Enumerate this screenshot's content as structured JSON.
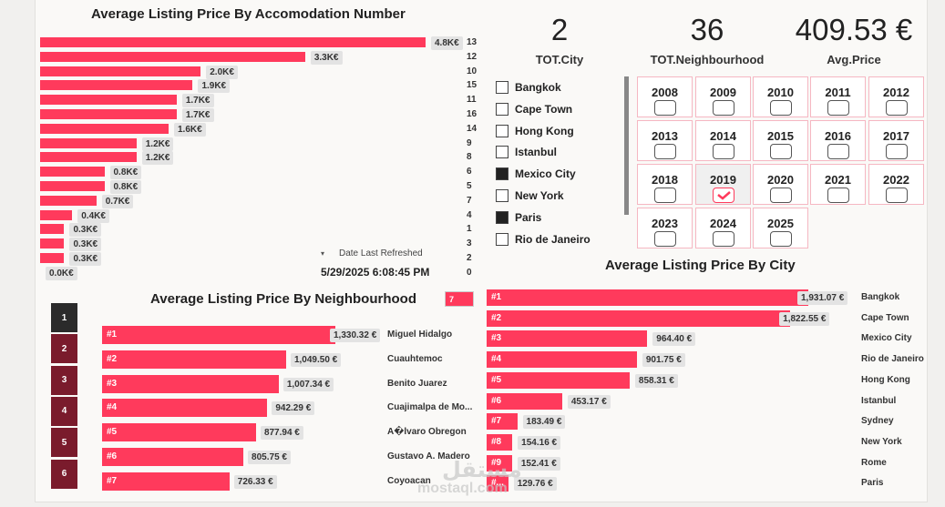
{
  "accommodation": {
    "title": "Average Listing Price By Accomodation Number",
    "bars": [
      {
        "cat": "13",
        "label": "4.8K€",
        "value": 4.8
      },
      {
        "cat": "12",
        "label": "3.3K€",
        "value": 3.3
      },
      {
        "cat": "10",
        "label": "2.0K€",
        "value": 2.0
      },
      {
        "cat": "15",
        "label": "1.9K€",
        "value": 1.9
      },
      {
        "cat": "11",
        "label": "1.7K€",
        "value": 1.7
      },
      {
        "cat": "16",
        "label": "1.7K€",
        "value": 1.7
      },
      {
        "cat": "14",
        "label": "1.6K€",
        "value": 1.6
      },
      {
        "cat": "9",
        "label": "1.2K€",
        "value": 1.2
      },
      {
        "cat": "8",
        "label": "1.2K€",
        "value": 1.2
      },
      {
        "cat": "6",
        "label": "0.8K€",
        "value": 0.8
      },
      {
        "cat": "5",
        "label": "0.8K€",
        "value": 0.8
      },
      {
        "cat": "7",
        "label": "0.7K€",
        "value": 0.7
      },
      {
        "cat": "4",
        "label": "0.4K€",
        "value": 0.4
      },
      {
        "cat": "1",
        "label": "0.3K€",
        "value": 0.3
      },
      {
        "cat": "3",
        "label": "0.3K€",
        "value": 0.3
      },
      {
        "cat": "2",
        "label": "0.3K€",
        "value": 0.3
      },
      {
        "cat": "0",
        "label": "0.0K€",
        "value": 0.0
      }
    ]
  },
  "refresh": {
    "label": "Date Last Refreshed",
    "value": "5/29/2025 6:08:45 PM"
  },
  "kpis": [
    {
      "value": "2",
      "label": "TOT.City"
    },
    {
      "value": "36",
      "label": "TOT.Neighbourhood"
    },
    {
      "value": "409.53 €",
      "label": "Avg.Price"
    }
  ],
  "cities": [
    {
      "name": "Bangkok",
      "checked": false
    },
    {
      "name": "Cape Town",
      "checked": false
    },
    {
      "name": "Hong Kong",
      "checked": false
    },
    {
      "name": "Istanbul",
      "checked": false
    },
    {
      "name": "Mexico City",
      "checked": true
    },
    {
      "name": "New York",
      "checked": false
    },
    {
      "name": "Paris",
      "checked": true
    },
    {
      "name": "Rio de Janeiro",
      "checked": false
    }
  ],
  "years": [
    {
      "label": "2008",
      "selected": false
    },
    {
      "label": "2009",
      "selected": false
    },
    {
      "label": "2010",
      "selected": false
    },
    {
      "label": "2011",
      "selected": false
    },
    {
      "label": "2012",
      "selected": false
    },
    {
      "label": "2013",
      "selected": false
    },
    {
      "label": "2014",
      "selected": false
    },
    {
      "label": "2015",
      "selected": false
    },
    {
      "label": "2016",
      "selected": false
    },
    {
      "label": "2017",
      "selected": false
    },
    {
      "label": "2018",
      "selected": false
    },
    {
      "label": "2019",
      "selected": true
    },
    {
      "label": "2020",
      "selected": false
    },
    {
      "label": "2021",
      "selected": false
    },
    {
      "label": "2022",
      "selected": false
    },
    {
      "label": "2023",
      "selected": false
    },
    {
      "label": "2024",
      "selected": false
    },
    {
      "label": "2025",
      "selected": false
    }
  ],
  "neighbourhood": {
    "title": "Average Listing Price By Neighbourhood",
    "topn_value": "7",
    "buttons": [
      "1",
      "2",
      "3",
      "4",
      "5",
      "6"
    ],
    "bars": [
      {
        "rank": "#1",
        "label": "1,330.32 €",
        "value": 1330.32,
        "cat": "Miguel Hidalgo"
      },
      {
        "rank": "#2",
        "label": "1,049.50 €",
        "value": 1049.5,
        "cat": "Cuauhtemoc"
      },
      {
        "rank": "#3",
        "label": "1,007.34 €",
        "value": 1007.34,
        "cat": "Benito Juarez"
      },
      {
        "rank": "#4",
        "label": "942.29 €",
        "value": 942.29,
        "cat": "Cuajimalpa de Mo..."
      },
      {
        "rank": "#5",
        "label": "877.94 €",
        "value": 877.94,
        "cat": "A�lvaro Obregon"
      },
      {
        "rank": "#6",
        "label": "805.75 €",
        "value": 805.75,
        "cat": "Gustavo A. Madero"
      },
      {
        "rank": "#7",
        "label": "726.33 €",
        "value": 726.33,
        "cat": "Coyoacan"
      }
    ]
  },
  "city_chart": {
    "title": "Average Listing Price By City",
    "bars": [
      {
        "rank": "#1",
        "label": "1,931.07 €",
        "value": 1931.07,
        "cat": "Bangkok"
      },
      {
        "rank": "#2",
        "label": "1,822.55 €",
        "value": 1822.55,
        "cat": "Cape Town"
      },
      {
        "rank": "#3",
        "label": "964.40 €",
        "value": 964.4,
        "cat": "Mexico City"
      },
      {
        "rank": "#4",
        "label": "901.75 €",
        "value": 901.75,
        "cat": "Rio de Janeiro"
      },
      {
        "rank": "#5",
        "label": "858.31 €",
        "value": 858.31,
        "cat": "Hong Kong"
      },
      {
        "rank": "#6",
        "label": "453.17 €",
        "value": 453.17,
        "cat": "Istanbul"
      },
      {
        "rank": "#7",
        "label": "183.49 €",
        "value": 183.49,
        "cat": "Sydney"
      },
      {
        "rank": "#8",
        "label": "154.16 €",
        "value": 154.16,
        "cat": "New York"
      },
      {
        "rank": "#9",
        "label": "152.41 €",
        "value": 152.41,
        "cat": "Rome"
      },
      {
        "rank": "#...",
        "label": "129.76 €",
        "value": 129.76,
        "cat": "Paris"
      }
    ]
  },
  "watermark": {
    "text1": "مستقل",
    "text2": "mostaql.com"
  },
  "colors": {
    "bar": "#ff3a5c",
    "btn_dark": "#2b2b2b",
    "btn": "#7a1b2c"
  },
  "chart_data": [
    {
      "type": "bar",
      "title": "Average Listing Price By Accomodation Number",
      "categories": [
        "13",
        "12",
        "10",
        "15",
        "11",
        "16",
        "14",
        "9",
        "8",
        "6",
        "5",
        "7",
        "4",
        "1",
        "3",
        "2",
        "0"
      ],
      "values": [
        4.8,
        3.3,
        2.0,
        1.9,
        1.7,
        1.7,
        1.6,
        1.2,
        1.2,
        0.8,
        0.8,
        0.7,
        0.4,
        0.3,
        0.3,
        0.3,
        0.0
      ],
      "unit": "K€"
    },
    {
      "type": "bar",
      "title": "Average Listing Price By Neighbourhood",
      "categories": [
        "Miguel Hidalgo",
        "Cuauhtemoc",
        "Benito Juarez",
        "Cuajimalpa de Mo...",
        "A�lvaro Obregon",
        "Gustavo A. Madero",
        "Coyoacan"
      ],
      "values": [
        1330.32,
        1049.5,
        1007.34,
        942.29,
        877.94,
        805.75,
        726.33
      ],
      "unit": "€"
    },
    {
      "type": "bar",
      "title": "Average Listing Price By City",
      "categories": [
        "Bangkok",
        "Cape Town",
        "Mexico City",
        "Rio de Janeiro",
        "Hong Kong",
        "Istanbul",
        "Sydney",
        "New York",
        "Rome",
        "Paris"
      ],
      "values": [
        1931.07,
        1822.55,
        964.4,
        901.75,
        858.31,
        453.17,
        183.49,
        154.16,
        152.41,
        129.76
      ],
      "unit": "€"
    }
  ]
}
